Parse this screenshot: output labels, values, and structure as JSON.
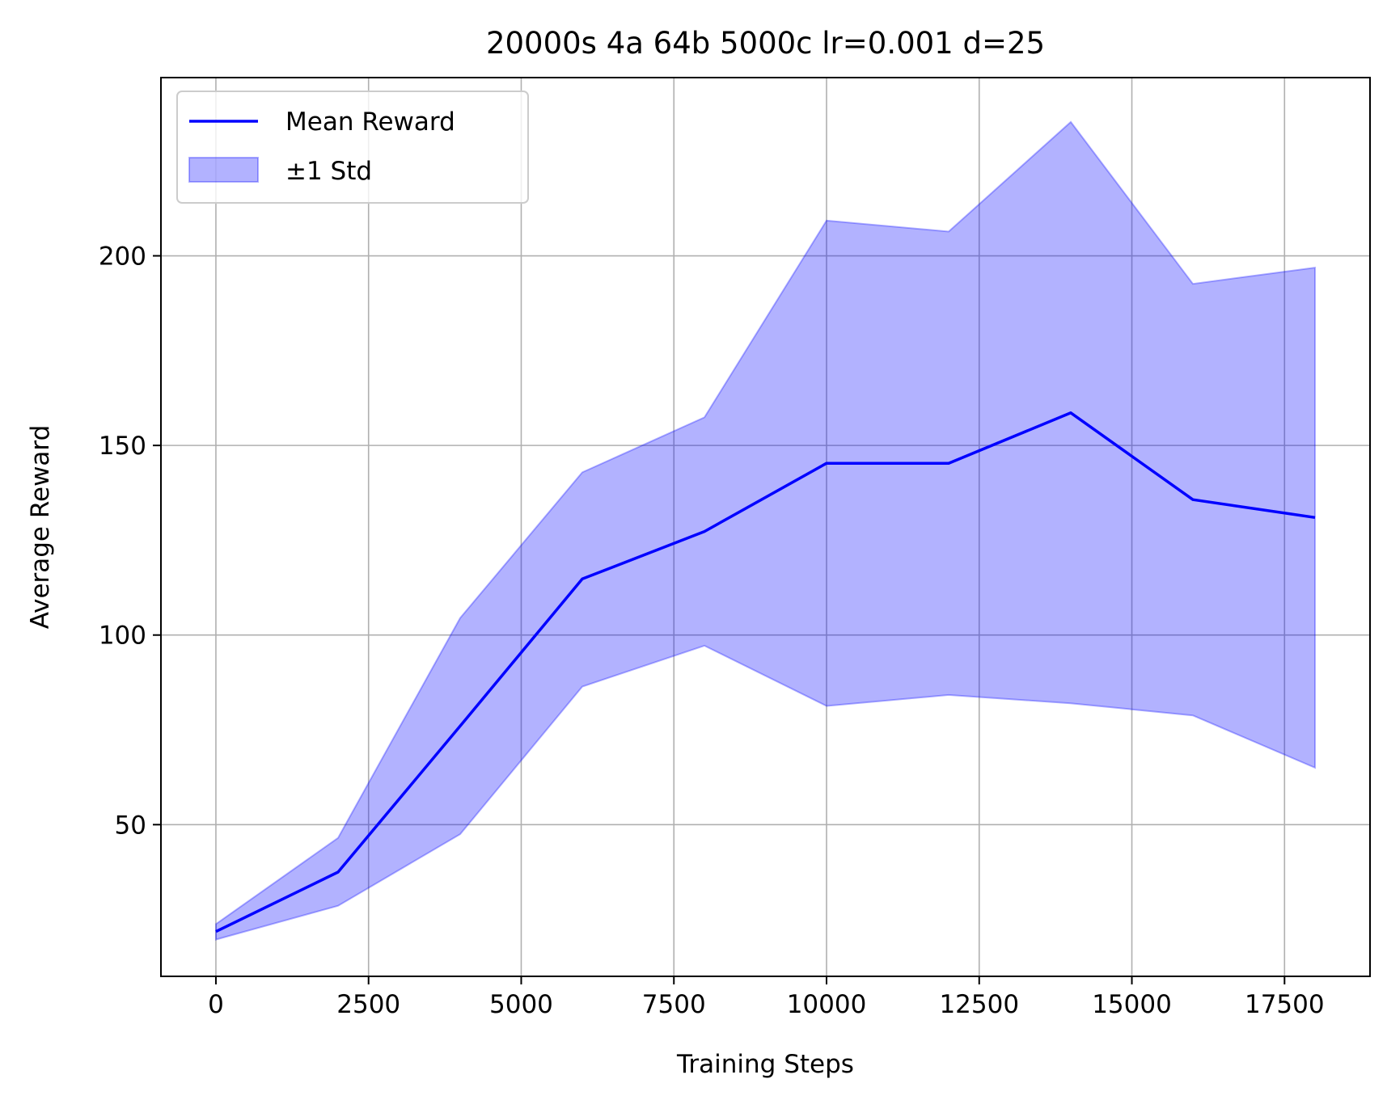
{
  "chart_data": {
    "type": "line",
    "title": "20000s 4a 64b 5000c lr=0.001 d=25",
    "xlabel": "Training Steps",
    "ylabel": "Average Reward",
    "xlim": [
      -900,
      18900
    ],
    "ylim": [
      10,
      247
    ],
    "xticks": [
      0,
      2500,
      5000,
      7500,
      10000,
      12500,
      15000,
      17500
    ],
    "yticks": [
      50,
      100,
      150,
      200
    ],
    "grid": true,
    "legend_position": "top-left",
    "x": [
      0,
      2000,
      4000,
      6000,
      8000,
      10000,
      12000,
      14000,
      16000,
      18000
    ],
    "series": [
      {
        "name": "Mean Reward",
        "kind": "line",
        "color": "#0000ff",
        "values": [
          21.8,
          37.5,
          76.0,
          114.8,
          127.3,
          145.3,
          145.3,
          158.6,
          135.7,
          131.0
        ]
      },
      {
        "name": "±1 Std",
        "kind": "band",
        "color": "#0000ff",
        "upper": [
          23.8,
          46.5,
          104.5,
          142.9,
          157.4,
          209.3,
          206.4,
          235.3,
          192.6,
          196.9
        ],
        "lower": [
          19.7,
          28.6,
          47.5,
          86.4,
          97.2,
          81.3,
          84.2,
          82.0,
          78.8,
          65.0
        ]
      }
    ]
  }
}
